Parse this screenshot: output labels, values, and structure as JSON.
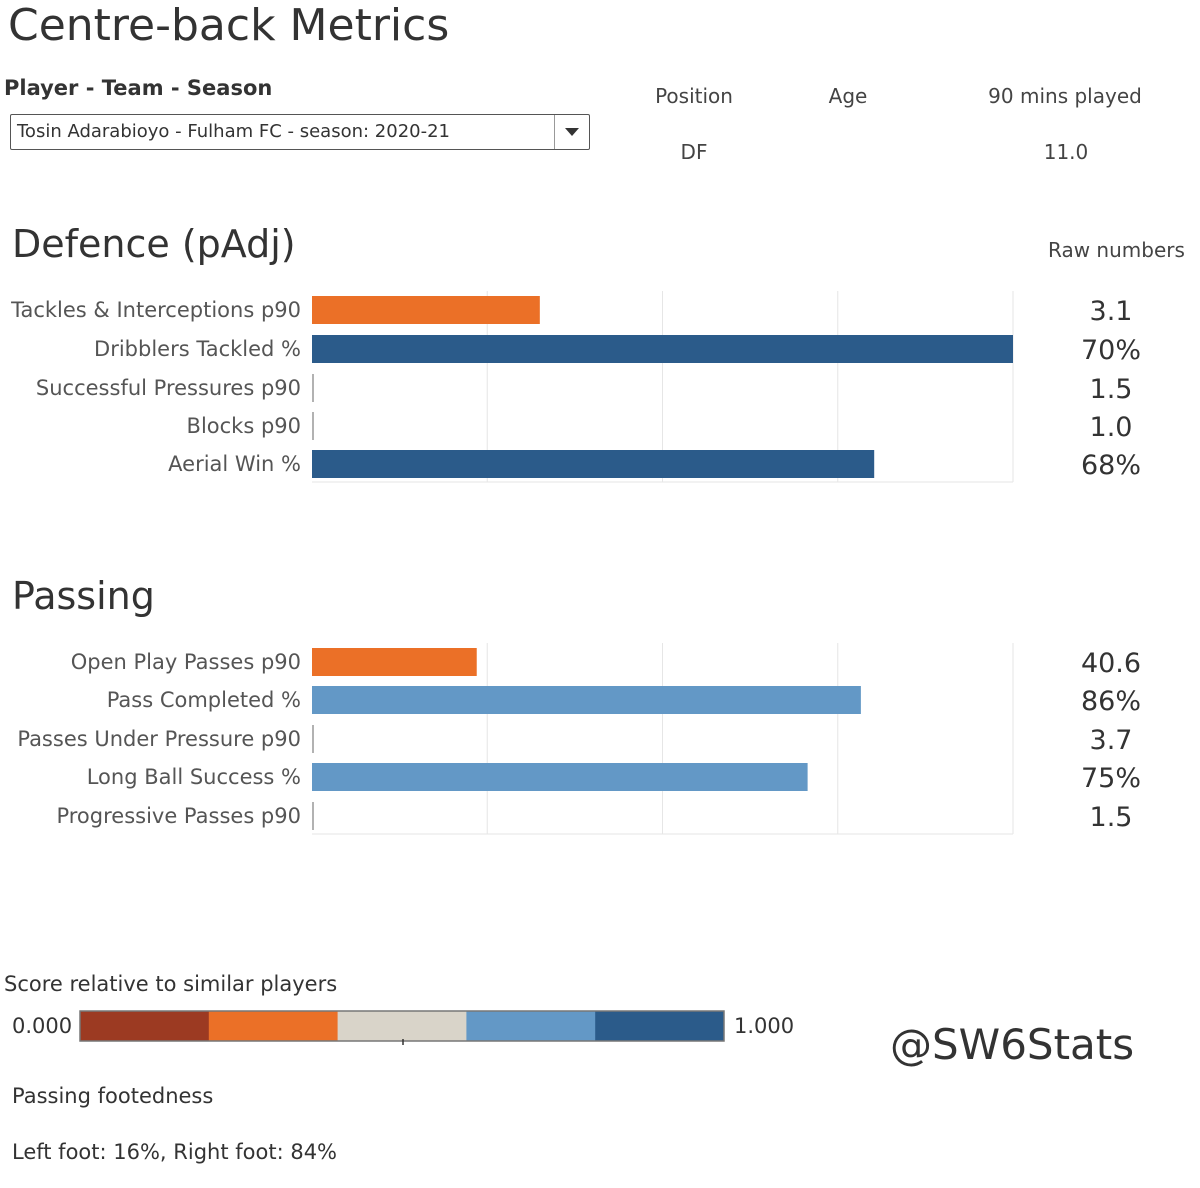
{
  "title": "Centre-back Metrics",
  "filter": {
    "label": "Player - Team - Season",
    "selected": "Tosin Adarabioyo - Fulham FC - season: 2020-21"
  },
  "info": {
    "position_label": "Position",
    "position_value": "DF",
    "age_label": "Age",
    "age_value": "",
    "mins_label": "90 mins played",
    "mins_value": "11.0"
  },
  "raw_header": "Raw numbers",
  "colors": {
    "very_low": "#9c3a22",
    "low": "#eb7027",
    "mid": "#d9d4c9",
    "high": "#6398c6",
    "very_high": "#2b5b8a",
    "grid": "#e6e6e6"
  },
  "chart_data": [
    {
      "type": "bar",
      "orientation": "horizontal",
      "title": "Defence (pAdj)",
      "xlim": [
        0,
        1
      ],
      "grid": true,
      "categories": [
        "Tackles & Interceptions p90",
        "Dribblers Tackled %",
        "Successful Pressures p90",
        "Blocks p90",
        "Aerial Win %"
      ],
      "values": [
        0.325,
        1.0,
        0.0,
        0.0,
        0.802
      ],
      "bar_colors": [
        "#eb7027",
        "#2b5b8a",
        "#2b5b8a",
        "#2b5b8a",
        "#2b5b8a"
      ],
      "raw_values": [
        "3.1",
        "70%",
        "1.5",
        "1.0",
        "68%"
      ]
    },
    {
      "type": "bar",
      "orientation": "horizontal",
      "title": "Passing",
      "xlim": [
        0,
        1
      ],
      "grid": true,
      "categories": [
        "Open Play Passes p90",
        "Pass Completed %",
        "Passes Under Pressure p90",
        "Long Ball Success %",
        "Progressive Passes p90"
      ],
      "values": [
        0.235,
        0.783,
        0.0,
        0.707,
        0.0
      ],
      "bar_colors": [
        "#eb7027",
        "#6398c6",
        "#6398c6",
        "#6398c6",
        "#6398c6"
      ],
      "raw_values": [
        "40.6",
        "86%",
        "3.7",
        "75%",
        "1.5"
      ]
    }
  ],
  "legend": {
    "title": "Score relative to similar players",
    "min_label": "0.000",
    "max_label": "1.000",
    "segments": [
      "#9c3a22",
      "#eb7027",
      "#d9d4c9",
      "#6398c6",
      "#2b5b8a"
    ]
  },
  "watermark": "@SW6Stats",
  "footedness": {
    "title": "Passing footedness",
    "value": "Left foot: 16%, Right foot: 84%"
  }
}
